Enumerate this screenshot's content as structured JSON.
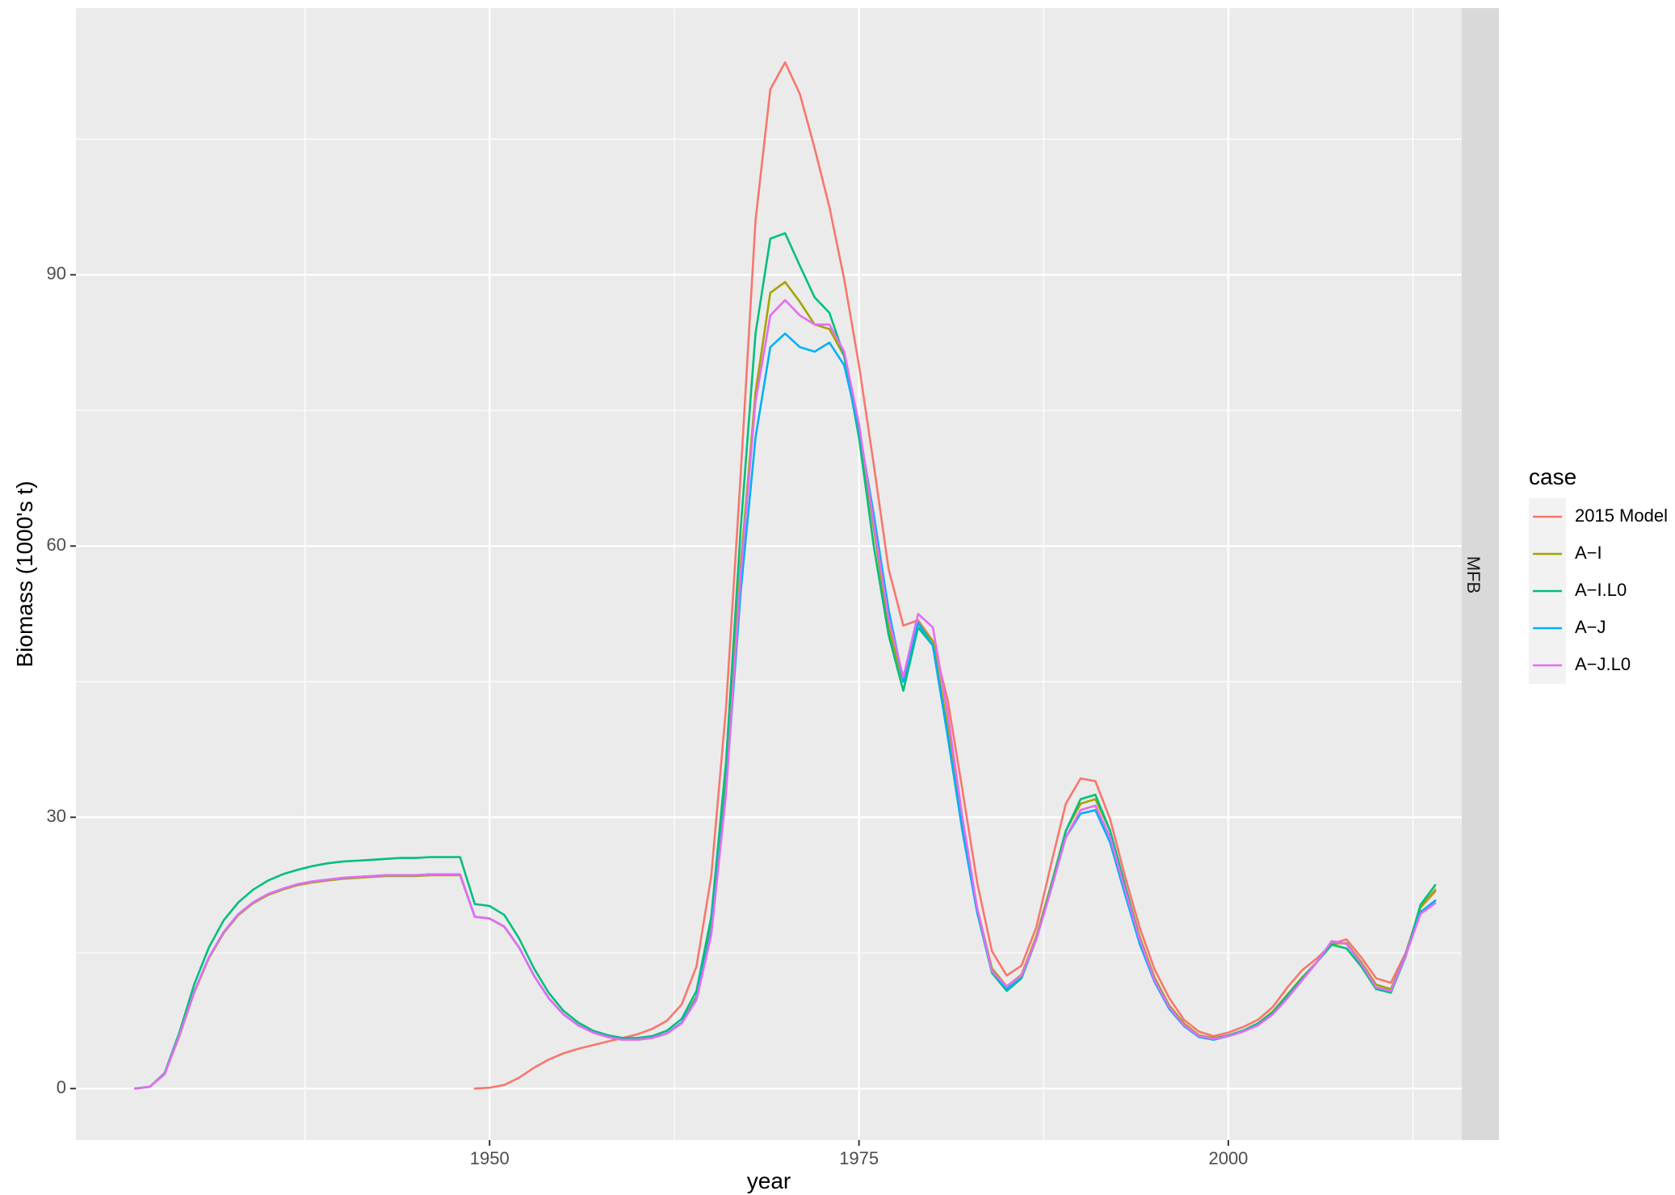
{
  "chart_data": {
    "type": "line",
    "title": "",
    "xlabel": "year",
    "ylabel": "Biomass (1000's t)",
    "facet_label": "MFB",
    "legend_title": "case",
    "legend_position": "right",
    "grid": true,
    "xlim": [
      1922,
      2015.8
    ],
    "ylim": [
      -5.7,
      119.5
    ],
    "x_ticks": [
      1950,
      1975,
      2000
    ],
    "y_ticks": [
      0,
      30,
      60,
      90
    ],
    "series": [
      {
        "name": "2015 Model",
        "color": "#F8766D",
        "x": [
          1949,
          1950,
          1951,
          1952,
          1953,
          1954,
          1955,
          1956,
          1957,
          1958,
          1959,
          1960,
          1961,
          1962,
          1963,
          1964,
          1965,
          1966,
          1967,
          1968,
          1969,
          1970,
          1971,
          1972,
          1973,
          1974,
          1975,
          1976,
          1977,
          1978,
          1979,
          1980,
          1981,
          1982,
          1983,
          1984,
          1985,
          1986,
          1987,
          1988,
          1989,
          1990,
          1991,
          1992,
          1993,
          1994,
          1995,
          1996,
          1997,
          1998,
          1999,
          2000,
          2001,
          2002,
          2003,
          2004,
          2005,
          2006,
          2007,
          2008,
          2009,
          2010,
          2011,
          2012,
          2013,
          2014
        ],
        "y": [
          0,
          0.1,
          0.4,
          1.2,
          2.3,
          3.2,
          3.9,
          4.4,
          4.8,
          5.2,
          5.6,
          6.0,
          6.6,
          7.5,
          9.3,
          13.5,
          23.5,
          42.0,
          68.0,
          96.0,
          110.5,
          113.5,
          110.0,
          104.0,
          97.5,
          89.5,
          80.0,
          69.0,
          57.5,
          51.2,
          51.8,
          49.5,
          43.0,
          33.0,
          22.8,
          15.2,
          12.5,
          13.6,
          17.8,
          24.8,
          31.5,
          34.3,
          34.0,
          29.8,
          23.5,
          17.8,
          13.2,
          10.0,
          7.6,
          6.3,
          5.8,
          6.2,
          6.8,
          7.6,
          9.0,
          11.2,
          13.1,
          14.4,
          16.0,
          16.5,
          14.5,
          12.2,
          11.7,
          15.0,
          20.0,
          21.8
        ]
      },
      {
        "name": "A−I",
        "color": "#A3A500",
        "x": [
          1926,
          1927,
          1928,
          1929,
          1930,
          1931,
          1932,
          1933,
          1934,
          1935,
          1936,
          1937,
          1938,
          1939,
          1940,
          1941,
          1942,
          1943,
          1944,
          1945,
          1946,
          1947,
          1948,
          1949,
          1950,
          1951,
          1952,
          1953,
          1954,
          1955,
          1956,
          1957,
          1958,
          1959,
          1960,
          1961,
          1962,
          1963,
          1964,
          1965,
          1966,
          1967,
          1968,
          1969,
          1970,
          1971,
          1972,
          1973,
          1974,
          1975,
          1976,
          1977,
          1978,
          1979,
          1980,
          1981,
          1982,
          1983,
          1984,
          1985,
          1986,
          1987,
          1988,
          1989,
          1990,
          1991,
          1992,
          1993,
          1994,
          1995,
          1996,
          1997,
          1998,
          1999,
          2000,
          2001,
          2002,
          2003,
          2004,
          2005,
          2006,
          2007,
          2008,
          2009,
          2010,
          2011,
          2012,
          2013,
          2014
        ],
        "y": [
          0,
          0.2,
          1.6,
          5.8,
          10.6,
          14.4,
          17.2,
          19.2,
          20.5,
          21.4,
          22.0,
          22.5,
          22.8,
          23.0,
          23.2,
          23.3,
          23.4,
          23.5,
          23.5,
          23.5,
          23.6,
          23.6,
          23.6,
          19.0,
          18.8,
          17.9,
          15.6,
          12.5,
          10.0,
          8.2,
          7.0,
          6.2,
          5.7,
          5.4,
          5.4,
          5.6,
          6.1,
          7.3,
          10.2,
          18.0,
          34.0,
          58.0,
          77.0,
          88.0,
          89.2,
          87.0,
          84.5,
          84.0,
          81.0,
          73.0,
          62.0,
          51.0,
          45.0,
          51.5,
          49.5,
          40.0,
          29.0,
          20.0,
          13.3,
          11.3,
          12.6,
          16.8,
          22.5,
          28.5,
          31.5,
          32.0,
          28.5,
          22.5,
          16.8,
          12.3,
          9.2,
          7.2,
          5.9,
          5.6,
          5.9,
          6.4,
          7.2,
          8.5,
          10.4,
          12.3,
          14.0,
          16.0,
          16.1,
          14.0,
          11.5,
          11.0,
          14.8,
          20.0,
          22.0
        ]
      },
      {
        "name": "A−I.L0",
        "color": "#00BF7D",
        "x": [
          1926,
          1927,
          1928,
          1929,
          1930,
          1931,
          1932,
          1933,
          1934,
          1935,
          1936,
          1937,
          1938,
          1939,
          1940,
          1941,
          1942,
          1943,
          1944,
          1945,
          1946,
          1947,
          1948,
          1949,
          1950,
          1951,
          1952,
          1953,
          1954,
          1955,
          1956,
          1957,
          1958,
          1959,
          1960,
          1961,
          1962,
          1963,
          1964,
          1965,
          1966,
          1967,
          1968,
          1969,
          1970,
          1971,
          1972,
          1973,
          1974,
          1975,
          1976,
          1977,
          1978,
          1979,
          1980,
          1981,
          1982,
          1983,
          1984,
          1985,
          1986,
          1987,
          1988,
          1989,
          1990,
          1991,
          1992,
          1993,
          1994,
          1995,
          1996,
          1997,
          1998,
          1999,
          2000,
          2001,
          2002,
          2003,
          2004,
          2005,
          2006,
          2007,
          2008,
          2009,
          2010,
          2011,
          2012,
          2013,
          2014
        ],
        "y": [
          0,
          0.2,
          1.7,
          6.2,
          11.5,
          15.6,
          18.6,
          20.6,
          22.0,
          23.0,
          23.7,
          24.2,
          24.6,
          24.9,
          25.1,
          25.2,
          25.3,
          25.4,
          25.5,
          25.5,
          25.6,
          25.6,
          25.6,
          20.4,
          20.2,
          19.2,
          16.6,
          13.3,
          10.6,
          8.6,
          7.3,
          6.4,
          5.9,
          5.6,
          5.6,
          5.8,
          6.4,
          7.7,
          10.8,
          19.0,
          36.0,
          62.0,
          83.5,
          94.0,
          94.6,
          91.0,
          87.5,
          85.8,
          81.0,
          72.0,
          60.0,
          50.2,
          44.0,
          51.0,
          49.0,
          39.0,
          28.5,
          19.5,
          12.8,
          10.8,
          12.2,
          16.5,
          22.3,
          28.5,
          32.0,
          32.5,
          28.5,
          22.5,
          16.5,
          12.0,
          9.0,
          7.0,
          5.8,
          5.5,
          5.9,
          6.4,
          7.2,
          8.4,
          10.3,
          12.2,
          14.0,
          15.9,
          15.5,
          13.5,
          11.0,
          10.6,
          14.6,
          20.3,
          22.5
        ]
      },
      {
        "name": "A−J",
        "color": "#00B0F6",
        "x": [
          1926,
          1927,
          1928,
          1929,
          1930,
          1931,
          1932,
          1933,
          1934,
          1935,
          1936,
          1937,
          1938,
          1939,
          1940,
          1941,
          1942,
          1943,
          1944,
          1945,
          1946,
          1947,
          1948,
          1949,
          1950,
          1951,
          1952,
          1953,
          1954,
          1955,
          1956,
          1957,
          1958,
          1959,
          1960,
          1961,
          1962,
          1963,
          1964,
          1965,
          1966,
          1967,
          1968,
          1969,
          1970,
          1971,
          1972,
          1973,
          1974,
          1975,
          1976,
          1977,
          1978,
          1979,
          1980,
          1981,
          1982,
          1983,
          1984,
          1985,
          1986,
          1987,
          1988,
          1989,
          1990,
          1991,
          1992,
          1993,
          1994,
          1995,
          1996,
          1997,
          1998,
          1999,
          2000,
          2001,
          2002,
          2003,
          2004,
          2005,
          2006,
          2007,
          2008,
          2009,
          2010,
          2011,
          2012,
          2013,
          2014
        ],
        "y": [
          0,
          0.2,
          1.6,
          5.9,
          10.7,
          14.5,
          17.3,
          19.3,
          20.6,
          21.5,
          22.1,
          22.6,
          22.9,
          23.1,
          23.3,
          23.4,
          23.5,
          23.6,
          23.6,
          23.6,
          23.7,
          23.7,
          23.7,
          19.0,
          18.8,
          17.9,
          15.6,
          12.5,
          10.0,
          8.2,
          7.0,
          6.2,
          5.7,
          5.4,
          5.4,
          5.6,
          6.1,
          7.3,
          10.0,
          17.5,
          33.0,
          55.0,
          72.0,
          82.0,
          83.5,
          82.0,
          81.5,
          82.5,
          80.0,
          73.0,
          63.5,
          53.0,
          45.0,
          51.5,
          49.0,
          39.0,
          28.5,
          19.5,
          13.0,
          11.0,
          12.4,
          16.5,
          22.0,
          27.8,
          30.4,
          30.8,
          27.2,
          21.5,
          16.0,
          11.8,
          8.8,
          6.9,
          5.7,
          5.4,
          5.8,
          6.3,
          7.0,
          8.2,
          10.0,
          12.0,
          14.0,
          16.3,
          16.0,
          13.8,
          11.2,
          10.8,
          14.8,
          19.5,
          20.8
        ]
      },
      {
        "name": "A−J.L0",
        "color": "#E76BF3",
        "x": [
          1926,
          1927,
          1928,
          1929,
          1930,
          1931,
          1932,
          1933,
          1934,
          1935,
          1936,
          1937,
          1938,
          1939,
          1940,
          1941,
          1942,
          1943,
          1944,
          1945,
          1946,
          1947,
          1948,
          1949,
          1950,
          1951,
          1952,
          1953,
          1954,
          1955,
          1956,
          1957,
          1958,
          1959,
          1960,
          1961,
          1962,
          1963,
          1964,
          1965,
          1966,
          1967,
          1968,
          1969,
          1970,
          1971,
          1972,
          1973,
          1974,
          1975,
          1976,
          1977,
          1978,
          1979,
          1980,
          1981,
          1982,
          1983,
          1984,
          1985,
          1986,
          1987,
          1988,
          1989,
          1990,
          1991,
          1992,
          1993,
          1994,
          1995,
          1996,
          1997,
          1998,
          1999,
          2000,
          2001,
          2002,
          2003,
          2004,
          2005,
          2006,
          2007,
          2008,
          2009,
          2010,
          2011,
          2012,
          2013,
          2014
        ],
        "y": [
          0,
          0.2,
          1.6,
          5.9,
          10.7,
          14.5,
          17.3,
          19.3,
          20.6,
          21.5,
          22.1,
          22.6,
          22.9,
          23.1,
          23.3,
          23.4,
          23.5,
          23.6,
          23.6,
          23.6,
          23.7,
          23.7,
          23.7,
          19.0,
          18.8,
          17.9,
          15.6,
          12.5,
          10.0,
          8.2,
          7.0,
          6.2,
          5.7,
          5.4,
          5.4,
          5.6,
          6.1,
          7.2,
          9.8,
          17.0,
          32.5,
          57.0,
          76.0,
          85.5,
          87.2,
          85.5,
          84.5,
          84.5,
          81.5,
          73.5,
          62.5,
          52.0,
          45.5,
          52.5,
          51.0,
          41.5,
          30.0,
          20.0,
          13.0,
          11.3,
          12.5,
          16.5,
          22.0,
          27.8,
          30.8,
          31.3,
          27.8,
          22.0,
          16.5,
          12.0,
          9.0,
          7.0,
          5.8,
          5.5,
          5.8,
          6.3,
          7.0,
          8.2,
          10.0,
          12.0,
          14.0,
          16.3,
          16.0,
          13.8,
          11.2,
          10.8,
          14.7,
          19.3,
          20.5
        ]
      }
    ]
  }
}
